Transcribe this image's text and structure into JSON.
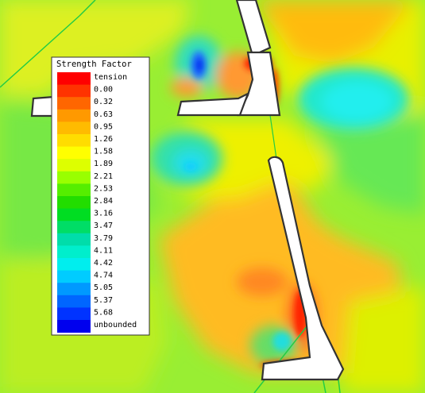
{
  "legend": {
    "title": "Strength Factor",
    "entries": [
      {
        "label": "tension",
        "color": "#ff0000"
      },
      {
        "label": "0.00",
        "color": "#ff3300"
      },
      {
        "label": "0.32",
        "color": "#ff6600"
      },
      {
        "label": "0.63",
        "color": "#ff9900"
      },
      {
        "label": "0.95",
        "color": "#ffbb00"
      },
      {
        "label": "1.26",
        "color": "#ffdd00"
      },
      {
        "label": "1.58",
        "color": "#ffff00"
      },
      {
        "label": "1.89",
        "color": "#ddff00"
      },
      {
        "label": "2.21",
        "color": "#99ff00"
      },
      {
        "label": "2.53",
        "color": "#55ee00"
      },
      {
        "label": "2.84",
        "color": "#22dd00"
      },
      {
        "label": "3.16",
        "color": "#00dd22"
      },
      {
        "label": "3.47",
        "color": "#00dd66"
      },
      {
        "label": "3.79",
        "color": "#00ddaa"
      },
      {
        "label": "4.11",
        "color": "#00eecc"
      },
      {
        "label": "4.42",
        "color": "#00eeee"
      },
      {
        "label": "4.74",
        "color": "#00ccff"
      },
      {
        "label": "5.05",
        "color": "#0099ff"
      },
      {
        "label": "5.37",
        "color": "#0066ff"
      },
      {
        "label": "5.68",
        "color": "#0033ff"
      },
      {
        "label": "unbounded",
        "color": "#0000ee"
      }
    ]
  }
}
